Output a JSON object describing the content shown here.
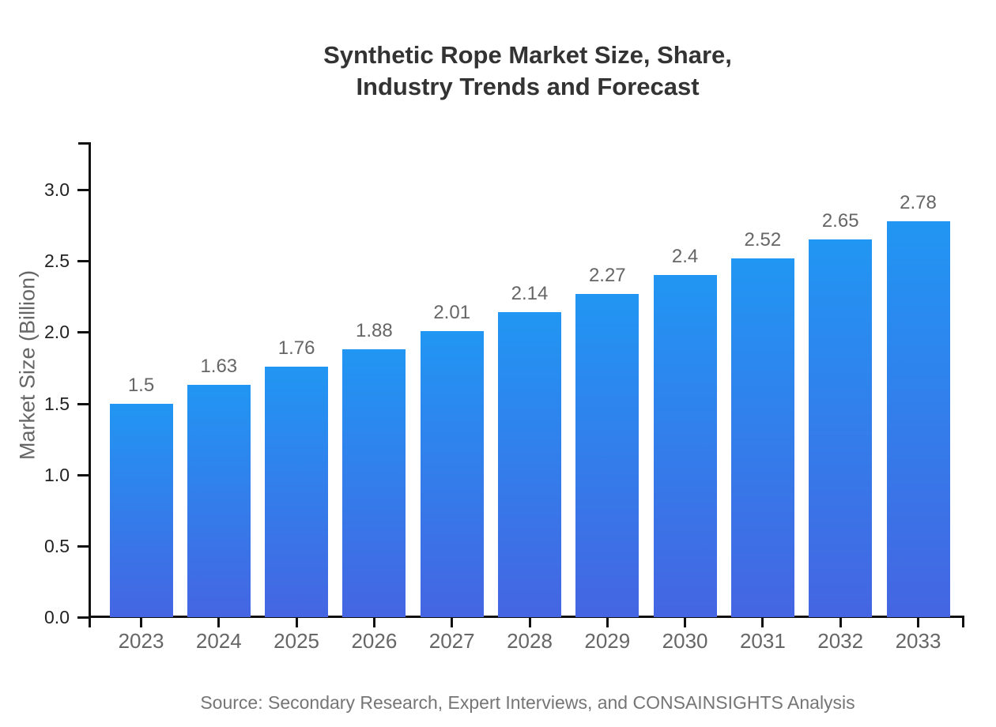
{
  "title": {
    "line1": "Synthetic Rope Market Size, Share,",
    "line2": "Industry Trends and Forecast"
  },
  "footer": {
    "source": "Source: Secondary Research, Expert Interviews, and CONSAINSIGHTS Analysis"
  },
  "chart_data": {
    "type": "bar",
    "title": "Synthetic Rope Market Size, Share, Industry Trends and Forecast",
    "categories": [
      "2023",
      "2024",
      "2025",
      "2026",
      "2027",
      "2028",
      "2029",
      "2030",
      "2031",
      "2032",
      "2033"
    ],
    "values": [
      1.5,
      1.63,
      1.76,
      1.88,
      2.01,
      2.14,
      2.27,
      2.4,
      2.52,
      2.65,
      2.78
    ],
    "data_labels": [
      "1.5",
      "1.63",
      "1.76",
      "1.88",
      "2.01",
      "2.14",
      "2.27",
      "2.4",
      "2.52",
      "2.65",
      "2.78"
    ],
    "xlabel": "",
    "ylabel": "Market Size (Billion)",
    "ylim": [
      0,
      3.3
    ],
    "yticks": [
      0,
      0.5,
      1,
      1.5,
      2,
      2.5,
      3
    ],
    "ytick_labels": [
      "0.0",
      "0.5",
      "1.0",
      "1.5",
      "2.0",
      "2.5",
      "3.0"
    ],
    "grid": false,
    "legend": false,
    "colors": {
      "bar_gradient_top": "#2196f3",
      "bar_gradient_bottom": "#4565e2",
      "axis_line": "#111111",
      "xtick_label": "#666666",
      "ytick_label": "#222222",
      "value_label": "#666666",
      "title_color": "#333333",
      "source_color": "#757575"
    }
  }
}
